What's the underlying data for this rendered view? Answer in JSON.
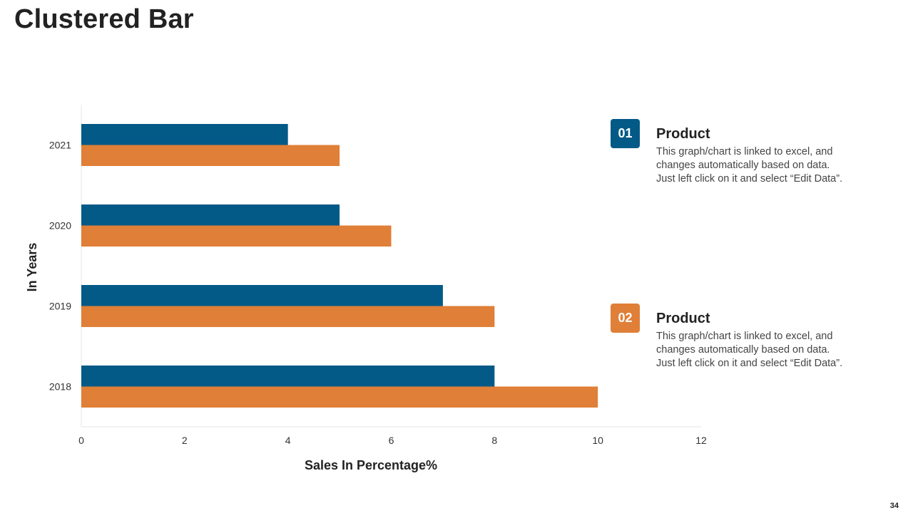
{
  "page": {
    "title": "Clustered Bar",
    "page_number": "34"
  },
  "colors": {
    "series1": "#035a86",
    "series2": "#e07f37",
    "axis": "#e6e6e6"
  },
  "legend": [
    {
      "number": "01",
      "title": "Product",
      "color": "#035a86",
      "desc_lines": [
        "This graph/chart is linked to excel, and",
        "changes automatically based on data.",
        "Just left click on it and select “Edit Data”."
      ]
    },
    {
      "number": "02",
      "title": "Product",
      "color": "#e07f37",
      "desc_lines": [
        "This graph/chart is linked to excel, and",
        "changes automatically based on data.",
        "Just left click on it and select “Edit Data”."
      ]
    }
  ],
  "chart_data": {
    "type": "bar",
    "orientation": "horizontal",
    "title": "Clustered Bar",
    "categories": [
      "2021",
      "2020",
      "2019",
      "2018"
    ],
    "series": [
      {
        "name": "Product 01",
        "color": "#035a86",
        "values": [
          4,
          5,
          7,
          8
        ]
      },
      {
        "name": "Product 02",
        "color": "#e07f37",
        "values": [
          5,
          6,
          8,
          10
        ]
      }
    ],
    "xlabel": "Sales In Percentage%",
    "ylabel": "In Years",
    "xlim": [
      0,
      12
    ],
    "xticks": [
      0,
      2,
      4,
      6,
      8,
      10,
      12
    ],
    "grid": false,
    "legend_position": "right"
  }
}
